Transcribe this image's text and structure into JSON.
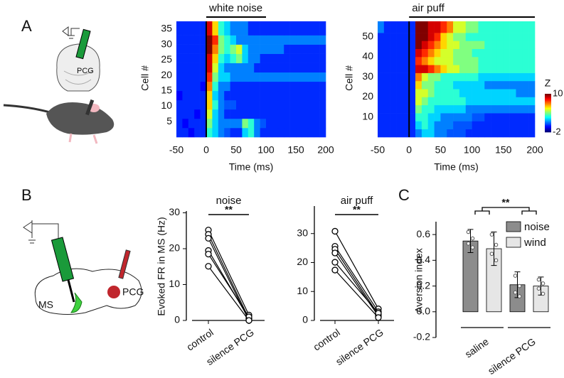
{
  "panel_labels": [
    "A",
    "B",
    "C"
  ],
  "diagram": {
    "a_label": "PCG",
    "b_labels": [
      "MS",
      "PCG"
    ]
  },
  "chart_data": [
    {
      "type": "heatmap",
      "title": "white noise",
      "stimulus": [
        0,
        100
      ],
      "xlabel": "Time (ms)",
      "ylabel": "Cell #",
      "xlim": [
        -50,
        200
      ],
      "xticks": [
        -50,
        0,
        50,
        100,
        150,
        200
      ],
      "ylim": [
        0,
        37.5
      ],
      "yticks": [
        5,
        10,
        15,
        20,
        25,
        30,
        35
      ],
      "clim": [
        -2,
        10
      ],
      "xbins": [
        -50,
        -40,
        -30,
        -20,
        -10,
        0,
        10,
        20,
        30,
        40,
        50,
        60,
        70,
        80,
        90,
        100,
        110,
        120,
        130,
        140,
        150,
        160,
        170,
        180,
        190,
        200
      ],
      "ybins": [
        0,
        3,
        6,
        9,
        12,
        15,
        18,
        21,
        24,
        27,
        30,
        33,
        37.5
      ],
      "values": [
        [
          0,
          0,
          -0.5,
          0,
          0,
          3,
          2,
          1,
          0.5,
          0,
          0,
          2,
          3,
          1,
          0,
          0,
          0,
          0,
          0,
          0,
          0,
          0,
          0,
          0,
          0
        ],
        [
          0,
          -0.5,
          0,
          0,
          0,
          4,
          2,
          1,
          1,
          1,
          1,
          4,
          3,
          1,
          0.5,
          0,
          0,
          0,
          0,
          0,
          0,
          0,
          0,
          0,
          0
        ],
        [
          0,
          0,
          0,
          -0.5,
          0,
          5,
          2,
          1,
          0,
          0,
          0,
          0,
          0,
          0,
          0,
          0,
          0,
          0,
          0,
          0,
          0,
          0,
          0,
          0,
          0
        ],
        [
          0,
          0,
          0,
          0,
          0,
          6,
          3,
          1,
          0.5,
          0.5,
          0,
          0,
          0,
          0,
          0,
          0,
          0,
          0,
          0,
          0,
          0,
          0,
          0,
          0,
          0
        ],
        [
          -0.5,
          0,
          0,
          0,
          0,
          6,
          2,
          1,
          0,
          0,
          0,
          0,
          0,
          0,
          0,
          0,
          0,
          0,
          0,
          0,
          0,
          0,
          0,
          0,
          0
        ],
        [
          0,
          0,
          0,
          0,
          -0.5,
          7,
          3,
          1,
          1,
          0,
          0,
          0,
          0,
          0,
          0,
          0,
          0,
          0,
          0,
          0,
          0,
          0,
          0,
          0,
          0
        ],
        [
          0,
          0,
          0,
          0,
          0,
          8,
          4,
          2,
          2,
          1,
          1,
          1,
          1,
          1,
          1,
          1,
          1,
          1,
          1,
          1,
          1,
          1,
          1,
          1,
          1
        ],
        [
          0,
          0,
          0,
          0,
          0,
          9,
          5,
          2,
          1,
          1,
          1,
          1,
          1,
          0,
          0,
          0,
          0,
          0,
          0,
          0,
          0,
          0,
          0,
          0,
          0
        ],
        [
          0,
          0,
          0,
          0,
          0,
          9,
          6,
          3,
          2,
          3,
          4,
          2,
          1,
          1,
          0,
          0,
          0,
          0,
          0,
          0,
          0,
          0,
          0,
          0,
          0
        ],
        [
          0,
          0,
          0,
          0,
          0,
          10,
          7,
          4,
          3,
          4,
          5,
          2,
          1,
          1,
          1,
          1,
          1,
          1,
          0,
          0,
          0,
          0,
          0,
          0,
          0
        ],
        [
          0,
          0,
          0,
          0,
          0,
          10,
          8,
          4,
          3,
          2,
          1,
          1,
          1,
          1,
          1,
          1,
          1,
          1,
          1,
          1,
          1,
          1,
          1,
          1,
          1
        ],
        [
          0,
          0,
          0,
          0,
          0,
          9,
          6,
          3,
          2,
          1,
          1,
          1,
          0,
          0,
          0,
          0,
          0,
          0,
          0,
          0,
          0,
          0,
          0,
          0,
          0
        ]
      ]
    },
    {
      "type": "heatmap",
      "title": "air puff",
      "stimulus": [
        0,
        200
      ],
      "xlabel": "Time (ms)",
      "ylabel": "Cell #",
      "xlim": [
        -50,
        200
      ],
      "xticks": [
        -50,
        0,
        50,
        100,
        150,
        200
      ],
      "ylim": [
        0,
        57.7
      ],
      "yticks": [
        10,
        20,
        30,
        40,
        50
      ],
      "clim": [
        -2,
        10
      ],
      "colorbar": {
        "label": "Z",
        "ticks": [
          10,
          -2
        ]
      },
      "xbins": [
        -50,
        -40,
        -30,
        -20,
        -10,
        0,
        10,
        20,
        30,
        40,
        50,
        60,
        70,
        80,
        90,
        100,
        110,
        120,
        130,
        140,
        150,
        160,
        170,
        180,
        190,
        200
      ],
      "ybins": [
        0,
        4,
        8,
        12,
        16,
        20,
        24,
        28,
        32,
        36,
        40,
        44,
        48,
        52,
        57.7
      ],
      "values": [
        [
          0,
          0,
          0,
          0,
          0,
          0,
          1,
          2,
          2,
          1,
          1,
          0.5,
          0.5,
          0.5,
          0,
          0,
          0,
          0,
          0,
          0,
          0,
          0,
          0,
          0,
          0
        ],
        [
          0,
          0,
          0,
          0,
          0,
          0,
          2,
          3,
          2,
          1,
          1,
          1,
          0.5,
          0.5,
          0.5,
          0,
          0,
          0,
          0,
          0,
          0,
          0,
          0,
          0,
          0
        ],
        [
          0,
          0,
          0,
          0,
          0,
          0,
          3,
          3,
          2,
          2,
          1,
          1,
          1,
          1,
          1,
          0.5,
          0.5,
          0,
          0,
          0,
          0,
          0,
          0,
          0,
          0
        ],
        [
          0,
          0,
          0,
          0,
          0,
          0,
          4,
          3,
          3,
          2,
          2,
          2,
          2,
          2,
          1,
          1,
          1,
          1,
          1,
          1,
          1,
          1,
          1,
          1,
          1
        ],
        [
          0,
          0,
          0,
          0,
          0,
          0,
          5,
          4,
          3,
          3,
          3,
          3,
          3,
          3,
          2,
          2,
          2,
          2,
          2,
          2,
          2,
          2,
          2,
          2,
          2
        ],
        [
          0,
          0,
          0,
          0,
          0,
          0,
          5,
          5,
          4,
          3,
          3,
          3,
          3,
          2,
          2,
          2,
          2,
          2,
          2,
          2,
          2,
          2,
          1,
          1,
          1
        ],
        [
          0,
          0,
          0,
          0,
          0,
          0,
          6,
          4,
          4,
          3,
          3,
          3,
          2,
          2,
          2,
          2,
          2,
          1,
          1,
          1,
          1,
          1,
          1,
          1,
          1
        ],
        [
          0,
          0,
          0,
          0,
          0,
          0,
          7,
          5,
          4,
          4,
          3,
          3,
          3,
          3,
          3,
          3,
          2,
          2,
          2,
          2,
          2,
          2,
          2,
          2,
          2
        ],
        [
          0,
          0,
          0,
          0,
          0,
          0,
          9,
          9,
          8,
          7,
          6,
          5,
          5,
          4,
          4,
          4,
          3,
          3,
          3,
          3,
          3,
          3,
          3,
          3,
          3
        ],
        [
          0,
          0,
          0,
          0,
          0,
          0,
          8,
          7,
          6,
          5,
          5,
          5,
          4,
          4,
          4,
          4,
          3,
          3,
          3,
          3,
          3,
          3,
          3,
          3,
          3
        ],
        [
          0,
          0,
          0,
          0,
          0,
          0,
          9,
          8,
          7,
          6,
          5,
          5,
          4,
          4,
          4,
          3,
          3,
          3,
          3,
          3,
          3,
          3,
          3,
          3,
          3
        ],
        [
          0,
          0,
          0,
          0,
          0,
          0,
          10,
          9,
          8,
          7,
          6,
          5,
          5,
          4,
          4,
          4,
          4,
          3,
          3,
          3,
          3,
          3,
          3,
          3,
          3
        ],
        [
          0,
          0,
          0,
          0,
          0,
          0,
          10,
          10,
          9,
          8,
          6,
          5,
          4,
          4,
          3,
          3,
          3,
          3,
          3,
          3,
          3,
          3,
          3,
          3,
          3
        ],
        [
          1,
          0,
          0,
          0,
          0,
          0,
          10,
          10,
          9,
          9,
          8,
          7,
          5,
          5,
          4,
          4,
          3,
          3,
          3,
          3,
          3,
          3,
          3,
          3,
          3
        ]
      ]
    },
    {
      "type": "paired",
      "title": "noise",
      "significance": "**",
      "ylabel": "Evoked FR in MS (Hz)",
      "categories": [
        "control",
        "silence PCG"
      ],
      "ylim": [
        0,
        30.5
      ],
      "yticks": [
        0,
        10,
        20,
        30
      ],
      "subjects": [
        [
          25.2,
          1.5
        ],
        [
          24,
          0.5
        ],
        [
          22.9,
          0
        ],
        [
          19.5,
          0.5
        ],
        [
          18.5,
          1
        ],
        [
          15.1,
          0
        ]
      ]
    },
    {
      "type": "paired",
      "title": "air puff",
      "significance": "**",
      "categories": [
        "control",
        "silence PCG"
      ],
      "ylim": [
        0,
        39.5
      ],
      "yticks": [
        0,
        10,
        20,
        30
      ],
      "subjects": [
        [
          30.8,
          4
        ],
        [
          25.6,
          3
        ],
        [
          24.6,
          2
        ],
        [
          23.3,
          1.5
        ],
        [
          20.1,
          2.5
        ],
        [
          17.4,
          1
        ]
      ]
    },
    {
      "type": "bar",
      "ylabel": "Aversion index",
      "significance": "**",
      "categories": [
        "saline",
        "silence PCG"
      ],
      "ylim": [
        -0.2,
        0.7
      ],
      "yticks": [
        -0.2,
        {
          "value": 0,
          "label": "0.0"
        },
        0.2,
        0.4,
        0.6
      ],
      "series": [
        {
          "name": "noise",
          "color": "#8c8c8c",
          "values": [
            0.55,
            0.21
          ],
          "errors": [
            0.09,
            0.1
          ],
          "points": [
            [
              0.62,
              0.57,
              0.53,
              0.5
            ],
            [
              0.28,
              0.2,
              0.15,
              0.12
            ]
          ]
        },
        {
          "name": "wind",
          "color": "#e6e6e6",
          "values": [
            0.49,
            0.2
          ],
          "errors": [
            0.13,
            0.07
          ],
          "points": [
            [
              0.6,
              0.52,
              0.45,
              0.4
            ],
            [
              0.25,
              0.22,
              0.18,
              0.14
            ]
          ]
        }
      ]
    }
  ]
}
